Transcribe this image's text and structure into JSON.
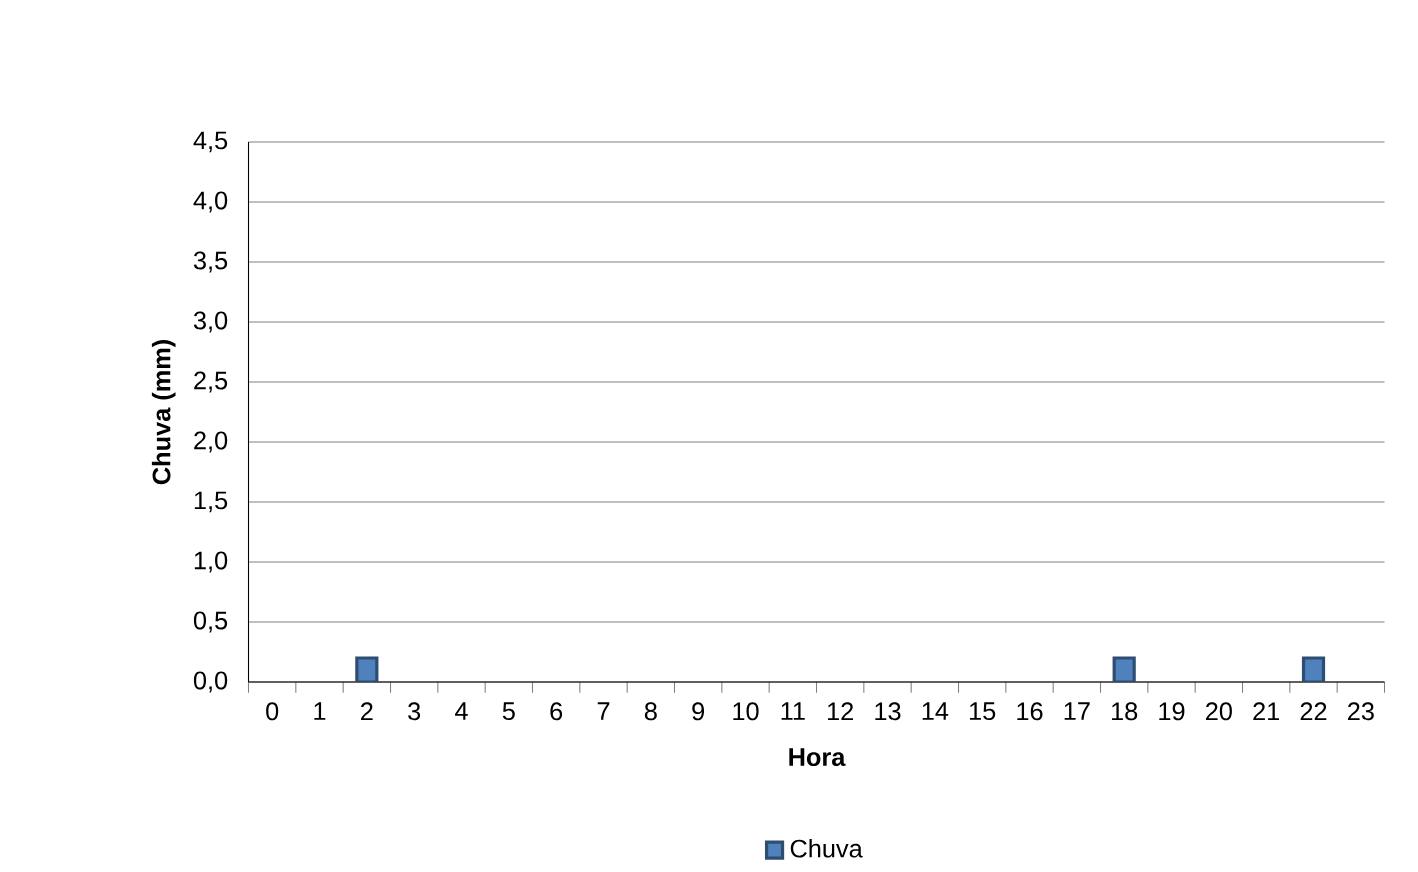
{
  "chart_data": {
    "type": "bar",
    "xlabel": "Hora",
    "ylabel": "Chuva (mm)",
    "categories": [
      "0",
      "1",
      "2",
      "3",
      "4",
      "5",
      "6",
      "7",
      "8",
      "9",
      "10",
      "11",
      "12",
      "13",
      "14",
      "15",
      "16",
      "17",
      "18",
      "19",
      "20",
      "21",
      "22",
      "23"
    ],
    "series": [
      {
        "name": "Chuva",
        "color": "#4f81bd",
        "values": [
          null,
          null,
          0.2,
          null,
          null,
          null,
          null,
          null,
          null,
          null,
          null,
          null,
          null,
          null,
          null,
          null,
          null,
          null,
          0.2,
          null,
          null,
          null,
          0.2,
          null
        ]
      }
    ],
    "ylim": [
      0,
      4.5
    ],
    "yticks": [
      {
        "value": 0,
        "label": "0,0"
      },
      {
        "value": 0.5,
        "label": "0,5"
      },
      {
        "value": 1,
        "label": "1,0"
      },
      {
        "value": 1.5,
        "label": "1,5"
      },
      {
        "value": 2,
        "label": "2,0"
      },
      {
        "value": 2.5,
        "label": "2,5"
      },
      {
        "value": 3,
        "label": "3,0"
      },
      {
        "value": 3.5,
        "label": "3,5"
      },
      {
        "value": 4,
        "label": "4,0"
      },
      {
        "value": 4.5,
        "label": "4,5"
      }
    ],
    "grid": "y",
    "legend": "bottom"
  }
}
